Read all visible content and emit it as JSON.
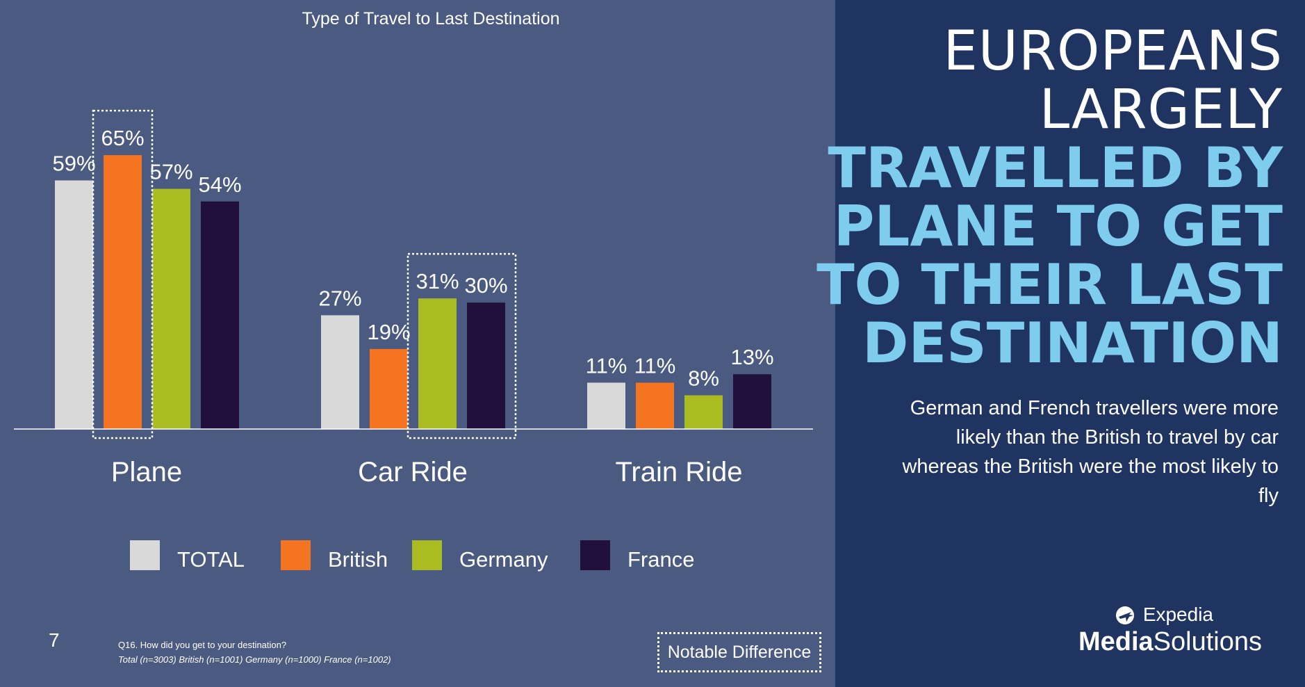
{
  "chart_data": {
    "type": "bar",
    "title": "Type of Travel to Last Destination",
    "categories": [
      "Plane",
      "Car Ride",
      "Train Ride"
    ],
    "series": [
      {
        "name": "TOTAL",
        "color": "#d9d9d9",
        "values": [
          59,
          27,
          11
        ],
        "labels": [
          "59%",
          "27%",
          "11%"
        ]
      },
      {
        "name": "British",
        "color": "#f47421",
        "values": [
          65,
          19,
          11
        ],
        "labels": [
          "65%",
          "19%",
          "11%"
        ]
      },
      {
        "name": "Germany",
        "color": "#aabc22",
        "values": [
          57,
          31,
          8
        ],
        "labels": [
          "57%",
          "31%",
          "8%"
        ]
      },
      {
        "name": "France",
        "color": "#22103c",
        "values": [
          54,
          30,
          13
        ],
        "labels": [
          "54%",
          "30%",
          "13%"
        ]
      }
    ],
    "ylim": [
      0,
      70
    ],
    "grid": false,
    "legend": "bottom",
    "notable_differences": [
      {
        "category": "Plane",
        "series": [
          "British"
        ]
      },
      {
        "category": "Car Ride",
        "series": [
          "Germany",
          "France"
        ]
      }
    ]
  },
  "headline": {
    "line1": "EUROPEANS",
    "line2": "LARGELY",
    "line3": "TRAVELLED BY",
    "line4": "PLANE TO GET",
    "line5": "TO THEIR LAST",
    "line6": "DESTINATION"
  },
  "subtext": "German and French travellers were more likely than the British to travel by car whereas the British were the most likely to fly",
  "logo": {
    "top": "Expedia",
    "bottom_bold": "Media",
    "bottom_regular": "Solutions"
  },
  "page_number": "7",
  "footnote": {
    "question": "Q16. How did you get to your destination?",
    "sample_sizes": "Total (n=3003) British (n=1001) Germany (n=1000) France (n=1002)"
  },
  "notable_label": "Notable Difference"
}
